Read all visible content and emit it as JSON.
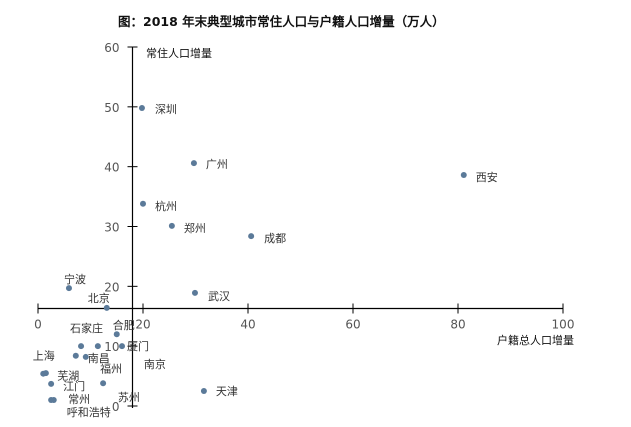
{
  "chart_data": {
    "type": "scatter",
    "title": "图：2018 年末典型城市常住人口与户籍人口增量（万人）",
    "xlabel": "户籍总人口增量",
    "ylabel": "常住人口增量",
    "xlim": [
      0,
      100
    ],
    "ylim": [
      0,
      60
    ],
    "x_ticks": [
      "0",
      "20",
      "40",
      "60",
      "80",
      "100"
    ],
    "y_ticks": [
      "0",
      "10",
      "20",
      "30",
      "40",
      "50",
      "60"
    ],
    "axis_cross": {
      "x": 18,
      "y": 16.3
    },
    "grid": false,
    "marker_color": "#5b7a99",
    "points": [
      {
        "label": "深圳",
        "x": 19.8,
        "y": 49.8
      },
      {
        "label": "广州",
        "x": 29.7,
        "y": 40.6
      },
      {
        "label": "西安",
        "x": 81.1,
        "y": 38.6
      },
      {
        "label": "杭州",
        "x": 20.0,
        "y": 33.8
      },
      {
        "label": "郑州",
        "x": 25.5,
        "y": 30.1
      },
      {
        "label": "成都",
        "x": 40.6,
        "y": 28.4
      },
      {
        "label": "宁波",
        "x": 5.9,
        "y": 19.7
      },
      {
        "label": "武汉",
        "x": 29.9,
        "y": 18.9
      },
      {
        "label": "北京",
        "x": 13.1,
        "y": 16.4
      },
      {
        "label": "合肥",
        "x": 15.0,
        "y": 12.0
      },
      {
        "label": "厦门",
        "x": 16.0,
        "y": 10.0
      },
      {
        "label": "石家庄",
        "x": 8.2,
        "y": 10.0
      },
      {
        "label": "南京",
        "x": 11.4,
        "y": 10.0
      },
      {
        "label": "上海",
        "x": 7.2,
        "y": 8.4
      },
      {
        "label": "南昌",
        "x": 9.1,
        "y": 8.2
      },
      {
        "label": "福州",
        "x": 12.4,
        "y": 3.8
      },
      {
        "label": "芜湖",
        "x": 1.0,
        "y": 5.4
      },
      {
        "label": "苏州",
        "x": 1.5,
        "y": 5.5
      },
      {
        "label": "江门",
        "x": 2.5,
        "y": 3.7
      },
      {
        "label": "常州",
        "x": 2.5,
        "y": 1.0
      },
      {
        "label": "呼和浩特",
        "x": 3.0,
        "y": 1.0
      },
      {
        "label": "天津",
        "x": 31.6,
        "y": 2.5
      }
    ]
  }
}
